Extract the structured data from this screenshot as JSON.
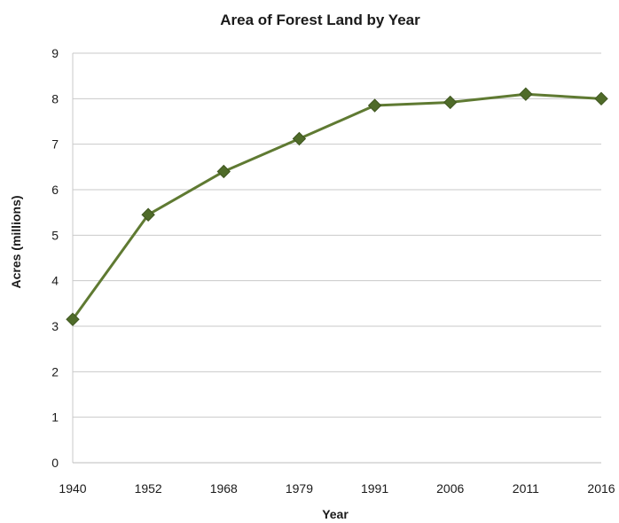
{
  "chart_data": {
    "type": "line",
    "title": "Area of Forest Land by Year",
    "xlabel": "Year",
    "ylabel": "Acres (millions)",
    "categories": [
      "1940",
      "1952",
      "1968",
      "1979",
      "1991",
      "2006",
      "2011",
      "2016"
    ],
    "series": [
      {
        "values": [
          3.15,
          5.45,
          6.4,
          7.12,
          7.85,
          7.92,
          8.1,
          8.0
        ]
      }
    ],
    "ylim": [
      0,
      9
    ],
    "yticks": [
      "0",
      "1",
      "2",
      "3",
      "4",
      "5",
      "6",
      "7",
      "8",
      "9"
    ],
    "grid": true,
    "marker": "diamond",
    "line_color": "#5f7a32",
    "marker_color": "#4f6b29"
  }
}
